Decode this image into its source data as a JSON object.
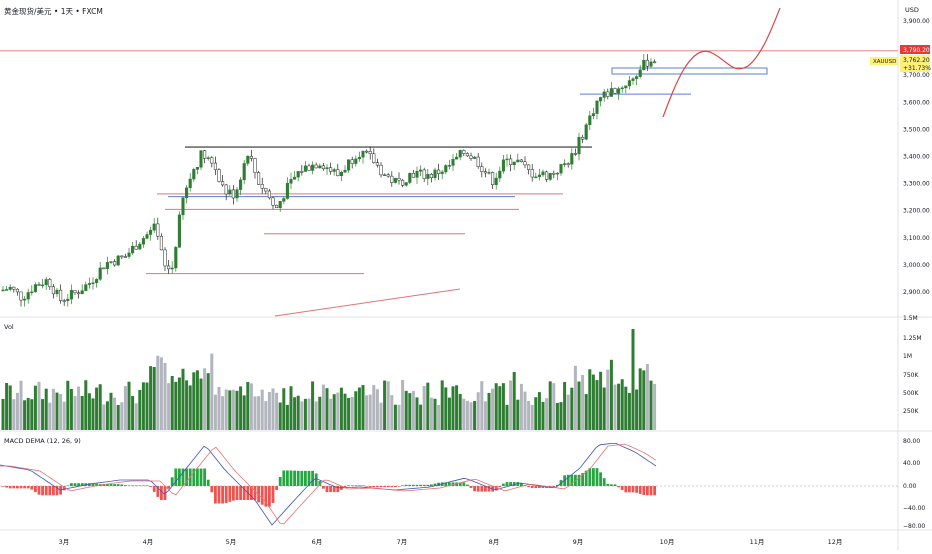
{
  "header": {
    "symbol_title": "黄金现货/美元 • 1天 • FXCM",
    "currency": "USD"
  },
  "price_axis": {
    "ticks": [
      "3,900.00",
      "3,800.00",
      "3,700.00",
      "3,600.00",
      "3,500.00",
      "3,400.00",
      "3,300.00",
      "3,200.00",
      "3,100.00",
      "3,000.00",
      "2,900.00"
    ],
    "symbol_tag": "XAUUSD",
    "alert_price": "3,790.20",
    "last_price": "3,762.20",
    "last_change": "+31.73%"
  },
  "volume_panel": {
    "label": "Vol",
    "ticks": [
      "1.5M",
      "1.25M",
      "1M",
      "750K",
      "500K",
      "250K"
    ]
  },
  "macd_panel": {
    "label": "MACD DEMA  (12, 26, 9)",
    "ticks": [
      "80.00",
      "40.00",
      "0.00",
      "−40.00",
      "−80.00"
    ]
  },
  "time_axis": {
    "ticks": [
      "3月",
      "4月",
      "5月",
      "6月",
      "7月",
      "8月",
      "9月",
      "10月",
      "11月",
      "12月"
    ]
  },
  "colors": {
    "up": "#2e7d32",
    "down": "#212121",
    "vol_up": "#2e7d32",
    "vol_down": "#b2b5be",
    "hist_up": "#26a641",
    "hist_down": "#ef5350",
    "red_line": "#e57373",
    "blue_line": "#5b7ed6",
    "resistance": "#555555",
    "macd_band": "#c9cdf7"
  },
  "chart_data": {
    "type": "candlestick",
    "title": "黄金现货/美元 • 1天 • FXCM",
    "ylim": [
      2850,
      3960
    ],
    "price_series_approx": [
      {
        "x": "2025-02-17",
        "close": 2910
      },
      {
        "x": "2025-03-01",
        "close": 2870
      },
      {
        "x": "2025-03-15",
        "close": 2935
      },
      {
        "x": "2025-04-01",
        "close": 3120
      },
      {
        "x": "2025-04-08",
        "close": 2980
      },
      {
        "x": "2025-04-22",
        "close": 3420
      },
      {
        "x": "2025-05-01",
        "close": 3240
      },
      {
        "x": "2025-05-15",
        "close": 3210
      },
      {
        "x": "2025-06-01",
        "close": 3380
      },
      {
        "x": "2025-06-13",
        "close": 3430
      },
      {
        "x": "2025-07-01",
        "close": 3340
      },
      {
        "x": "2025-07-23",
        "close": 3410
      },
      {
        "x": "2025-08-01",
        "close": 3360
      },
      {
        "x": "2025-08-20",
        "close": 3330
      },
      {
        "x": "2025-09-05",
        "close": 3580
      },
      {
        "x": "2025-09-23",
        "close": 3762
      }
    ],
    "horizontal_levels": [
      {
        "name": "resistance",
        "price": 3435
      },
      {
        "name": "support-1",
        "price": 3260
      },
      {
        "name": "support-2",
        "price": 3255
      },
      {
        "name": "support-3",
        "price": 3205
      },
      {
        "name": "support-4",
        "price": 3115
      },
      {
        "name": "support-5",
        "price": 2965
      },
      {
        "name": "breakout-level",
        "price": 3630
      },
      {
        "name": "alert-line",
        "price": 3790
      }
    ],
    "projection": "curved path from ~3550 up to ~3950 after Sep",
    "volume_range": [
      0,
      1500000
    ],
    "macd_range": [
      -80,
      80
    ]
  }
}
